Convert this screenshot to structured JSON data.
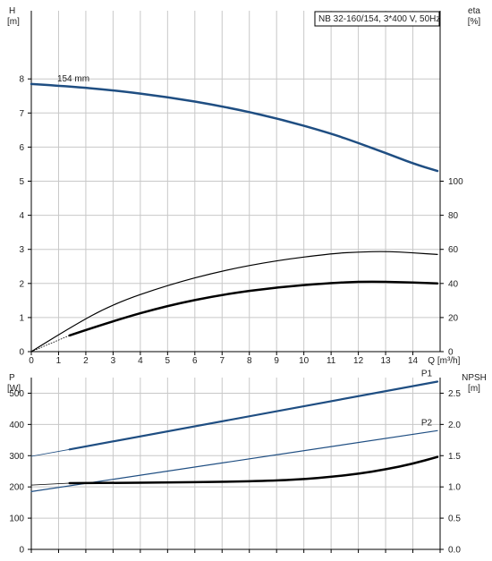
{
  "chart_data": [
    {
      "type": "line",
      "title": "NB 32-160/154, 3*400 V, 50Hz",
      "annotation": "154 mm",
      "xlabel": "Q [m³/h]",
      "xlim": [
        0,
        15
      ],
      "x_ticks": [
        0,
        1,
        2,
        3,
        4,
        5,
        6,
        7,
        8,
        9,
        10,
        11,
        12,
        13,
        14
      ],
      "y_left": {
        "label_line1": "H",
        "label_line2": "[m]",
        "lim": [
          0,
          10
        ],
        "ticks": [
          0,
          1,
          2,
          3,
          4,
          5,
          6,
          7,
          8
        ]
      },
      "y_right": {
        "label_line1": "eta",
        "label_line2": "[%]",
        "lim": [
          0,
          200
        ],
        "ticks": [
          0,
          20,
          40,
          60,
          80,
          100
        ]
      },
      "grid": true,
      "series": [
        {
          "name": "",
          "axis": "left",
          "color": "#1f4e82",
          "width": 2.5,
          "x": [
            0,
            1.4,
            3,
            5,
            7,
            9,
            11,
            12,
            13,
            14,
            14.9
          ],
          "y": [
            7.85,
            7.78,
            7.67,
            7.47,
            7.2,
            6.85,
            6.4,
            6.12,
            5.83,
            5.52,
            5.3
          ]
        },
        {
          "name": "",
          "axis": "right",
          "color": "#000000",
          "width": 1.2,
          "x": [
            0,
            1.4,
            3,
            5,
            7,
            9,
            11,
            12,
            13,
            14,
            14.9
          ],
          "y": [
            0,
            14,
            28,
            39,
            47.5,
            53.5,
            57.5,
            58.5,
            58.8,
            58,
            57
          ]
        },
        {
          "name": "",
          "axis": "right",
          "color": "#000000",
          "width": 2.5,
          "x": [
            1.4,
            3,
            5,
            7,
            9,
            11,
            12,
            13,
            14,
            14.9
          ],
          "y": [
            9.5,
            18,
            27,
            33.5,
            37.8,
            40.3,
            41,
            41,
            40.5,
            40
          ]
        },
        {
          "name": "",
          "axis": "right",
          "color": "#000000",
          "width": 0.8,
          "dotted": true,
          "x": [
            0,
            1.4
          ],
          "y": [
            0,
            9.5
          ]
        }
      ]
    },
    {
      "type": "line",
      "xlim": [
        0,
        15
      ],
      "y_left": {
        "label_line1": "P",
        "label_line2": "[W]",
        "lim": [
          0,
          550
        ],
        "ticks": [
          0,
          100,
          200,
          300,
          400,
          500
        ]
      },
      "y_right": {
        "label_line1": "NPSH",
        "label_line2": "[m]",
        "lim": [
          0,
          2.75
        ],
        "ticks": [
          0.0,
          0.5,
          1.0,
          1.5,
          2.0,
          2.5
        ]
      },
      "grid": true,
      "series": [
        {
          "name": "P1",
          "axis": "left",
          "color": "#1f4e82",
          "width": 2.2,
          "x": [
            1.4,
            14.9
          ],
          "y": [
            320,
            537
          ]
        },
        {
          "name": "",
          "axis": "left",
          "color": "#1f4e82",
          "width": 0.8,
          "x": [
            0,
            1.4
          ],
          "y": [
            298,
            320
          ]
        },
        {
          "name": "P2",
          "axis": "left",
          "color": "#1f4e82",
          "width": 1.2,
          "x": [
            0,
            14.9
          ],
          "y": [
            185,
            380
          ]
        },
        {
          "name": "",
          "axis": "right",
          "color": "#000000",
          "width": 2.5,
          "x": [
            1.4,
            3,
            5,
            7,
            9,
            10,
            11,
            12,
            13,
            14,
            14.9
          ],
          "y": [
            1.06,
            1.065,
            1.07,
            1.08,
            1.1,
            1.125,
            1.16,
            1.21,
            1.28,
            1.37,
            1.48
          ]
        },
        {
          "name": "",
          "axis": "right",
          "color": "#000000",
          "width": 0.8,
          "x": [
            0,
            1.4
          ],
          "y": [
            1.03,
            1.06
          ]
        }
      ]
    }
  ]
}
